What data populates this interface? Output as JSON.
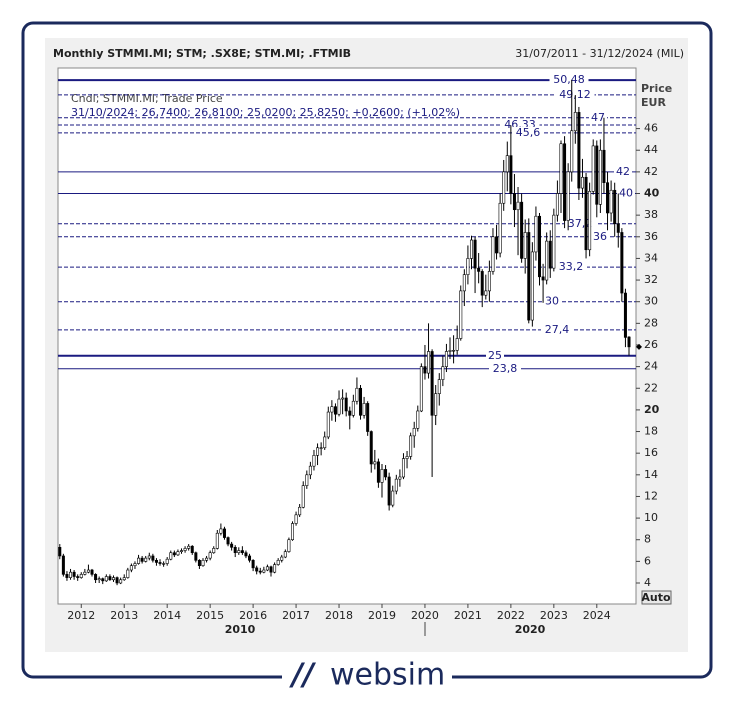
{
  "chart_data": {
    "type": "candlestick",
    "title": "Monthly STMMI.MI; STM; .SX8E; STM.MI; .FTMIB",
    "date_range": "31/07/2011 - 31/12/2024 (MIL)",
    "axis_label": "Price",
    "unit": "EUR",
    "info": [
      "Cndl; STMMI.MI; Trade Price",
      "31/10/2024; 26,7400; 26,8100; 25,0200; 25,8250; +0,2600; (+1,02%)"
    ],
    "button": "Auto",
    "decades": [
      "2010",
      "2020"
    ],
    "color_up": "#ffffff",
    "color_down": "#000000",
    "level_color": "#1a1a80",
    "ylim": [
      2.06,
      51.6
    ],
    "yticks": [
      4,
      6,
      8,
      10,
      12,
      14,
      16,
      18,
      20,
      22,
      24,
      26,
      28,
      30,
      32,
      34,
      36,
      38,
      40,
      42,
      44,
      46
    ],
    "levels": [
      {
        "value": 50.48,
        "label": "50,48",
        "style": "solid"
      },
      {
        "value": 49.12,
        "label": "49,12",
        "style": "dashed"
      },
      {
        "value": 47,
        "label": "47",
        "style": "dashed"
      },
      {
        "value": 46.33,
        "label": "46,33",
        "style": "dashed"
      },
      {
        "value": 45.6,
        "label": "45,6",
        "style": "dashed"
      },
      {
        "value": 42,
        "label": "42",
        "style": "solid"
      },
      {
        "value": 40,
        "label": "40",
        "style": "solid"
      },
      {
        "value": 37.2,
        "label": "37,2",
        "style": "dashed"
      },
      {
        "value": 36,
        "label": "36",
        "style": "dashed"
      },
      {
        "value": 33.2,
        "label": "33,2",
        "style": "dashed"
      },
      {
        "value": 30,
        "label": "30",
        "style": "dashed"
      },
      {
        "value": 27.4,
        "label": "27,4",
        "style": "dashed"
      },
      {
        "value": 25,
        "label": "25",
        "style": "solid"
      },
      {
        "value": 23.8,
        "label": "23,8",
        "style": "solid"
      }
    ],
    "categories": [
      null,
      null,
      null,
      null,
      null,
      null,
      "2012",
      null,
      null,
      null,
      null,
      null,
      null,
      null,
      null,
      null,
      null,
      null,
      "2013",
      null,
      null,
      null,
      null,
      null,
      null,
      null,
      null,
      null,
      null,
      null,
      "2014",
      null,
      null,
      null,
      null,
      null,
      null,
      null,
      null,
      null,
      null,
      null,
      "2015",
      null,
      null,
      null,
      null,
      null,
      null,
      null,
      null,
      null,
      null,
      null,
      "2016",
      null,
      null,
      null,
      null,
      null,
      null,
      null,
      null,
      null,
      null,
      null,
      "2017",
      null,
      null,
      null,
      null,
      null,
      null,
      null,
      null,
      null,
      null,
      null,
      "2018",
      null,
      null,
      null,
      null,
      null,
      null,
      null,
      null,
      null,
      null,
      null,
      "2019",
      null,
      null,
      null,
      null,
      null,
      null,
      null,
      null,
      null,
      null,
      null,
      "2020",
      null,
      null,
      null,
      null,
      null,
      null,
      null,
      null,
      null,
      null,
      null,
      "2021",
      null,
      null,
      null,
      null,
      null,
      null,
      null,
      null,
      null,
      null,
      null,
      "2022",
      null,
      null,
      null,
      null,
      null,
      null,
      null,
      null,
      null,
      null,
      null,
      "2023",
      null,
      null,
      null,
      null,
      null,
      null,
      null,
      null,
      null,
      null,
      null,
      "2024",
      null,
      null,
      null,
      null,
      null,
      null,
      null,
      null,
      null
    ],
    "ohlc": [
      [
        7.3,
        7.6,
        6.2,
        6.5
      ],
      [
        6.5,
        6.7,
        4.6,
        4.8
      ],
      [
        4.8,
        5.1,
        4.2,
        4.5
      ],
      [
        4.5,
        5.3,
        4.3,
        5.0
      ],
      [
        5.0,
        5.2,
        4.3,
        4.6
      ],
      [
        4.6,
        4.8,
        4.2,
        4.5
      ],
      [
        4.5,
        5.0,
        4.4,
        4.8
      ],
      [
        4.8,
        5.3,
        4.7,
        5.0
      ],
      [
        5.0,
        5.7,
        4.9,
        5.2
      ],
      [
        5.2,
        5.3,
        4.6,
        4.8
      ],
      [
        4.8,
        4.9,
        4.0,
        4.3
      ],
      [
        4.3,
        4.6,
        4.0,
        4.4
      ],
      [
        4.4,
        4.5,
        3.9,
        4.2
      ],
      [
        4.2,
        4.8,
        4.1,
        4.6
      ],
      [
        4.6,
        4.8,
        4.2,
        4.3
      ],
      [
        4.3,
        4.7,
        4.1,
        4.5
      ],
      [
        4.5,
        4.6,
        3.8,
        4.0
      ],
      [
        4.0,
        4.5,
        3.9,
        4.3
      ],
      [
        4.3,
        4.8,
        4.2,
        4.5
      ],
      [
        4.5,
        5.4,
        4.4,
        5.2
      ],
      [
        5.2,
        5.8,
        5.0,
        5.6
      ],
      [
        5.6,
        6.0,
        5.3,
        5.8
      ],
      [
        5.8,
        6.6,
        5.7,
        6.3
      ],
      [
        6.3,
        6.5,
        5.8,
        6.0
      ],
      [
        6.0,
        6.5,
        5.9,
        6.3
      ],
      [
        6.3,
        6.8,
        6.1,
        6.5
      ],
      [
        6.5,
        6.7,
        5.9,
        6.1
      ],
      [
        6.1,
        6.3,
        5.6,
        5.9
      ],
      [
        5.9,
        6.2,
        5.6,
        5.8
      ],
      [
        5.8,
        6.0,
        5.5,
        5.8
      ],
      [
        5.8,
        6.4,
        5.6,
        6.2
      ],
      [
        6.2,
        7.0,
        6.1,
        6.8
      ],
      [
        6.8,
        7.0,
        6.4,
        6.6
      ],
      [
        6.6,
        7.1,
        6.5,
        6.9
      ],
      [
        6.9,
        7.2,
        6.7,
        7.0
      ],
      [
        7.0,
        7.4,
        6.8,
        7.2
      ],
      [
        7.2,
        7.6,
        7.0,
        7.4
      ],
      [
        7.4,
        7.5,
        6.6,
        6.8
      ],
      [
        6.8,
        6.9,
        5.9,
        6.1
      ],
      [
        6.1,
        6.2,
        5.3,
        5.6
      ],
      [
        5.6,
        6.3,
        5.5,
        6.1
      ],
      [
        6.1,
        6.5,
        5.9,
        6.3
      ],
      [
        6.3,
        7.0,
        6.1,
        6.8
      ],
      [
        6.8,
        7.4,
        6.7,
        7.2
      ],
      [
        7.2,
        8.9,
        7.1,
        8.6
      ],
      [
        8.6,
        9.5,
        8.4,
        9.0
      ],
      [
        9.0,
        9.2,
        8.0,
        8.2
      ],
      [
        8.2,
        8.3,
        7.4,
        7.6
      ],
      [
        7.6,
        7.8,
        7.0,
        7.3
      ],
      [
        7.3,
        7.5,
        6.4,
        6.8
      ],
      [
        6.8,
        7.3,
        6.6,
        7.0
      ],
      [
        7.0,
        7.4,
        6.6,
        6.8
      ],
      [
        6.8,
        7.0,
        6.3,
        6.5
      ],
      [
        6.5,
        6.7,
        5.9,
        6.1
      ],
      [
        6.1,
        6.2,
        5.1,
        5.4
      ],
      [
        5.4,
        5.6,
        4.8,
        5.1
      ],
      [
        5.1,
        5.4,
        4.8,
        5.0
      ],
      [
        5.0,
        5.5,
        4.9,
        5.2
      ],
      [
        5.2,
        5.7,
        5.1,
        5.5
      ],
      [
        5.5,
        5.6,
        4.6,
        5.0
      ],
      [
        5.0,
        5.9,
        4.9,
        5.7
      ],
      [
        5.7,
        6.3,
        5.6,
        6.1
      ],
      [
        6.1,
        6.6,
        5.9,
        6.4
      ],
      [
        6.4,
        7.1,
        6.3,
        6.9
      ],
      [
        6.9,
        8.2,
        6.8,
        8.0
      ],
      [
        8.0,
        9.7,
        7.9,
        9.5
      ],
      [
        9.5,
        10.6,
        9.3,
        10.3
      ],
      [
        10.3,
        11.3,
        10.1,
        11.0
      ],
      [
        11.0,
        13.4,
        10.9,
        13.0
      ],
      [
        13.0,
        14.4,
        12.7,
        14.0
      ],
      [
        14.0,
        15.2,
        13.6,
        14.8
      ],
      [
        14.8,
        16.3,
        14.4,
        15.8
      ],
      [
        15.8,
        16.9,
        14.9,
        16.5
      ],
      [
        16.5,
        17.0,
        15.8,
        16.5
      ],
      [
        16.5,
        18.0,
        16.3,
        17.5
      ],
      [
        17.5,
        20.3,
        17.3,
        19.8
      ],
      [
        19.8,
        20.9,
        19.0,
        20.3
      ],
      [
        20.3,
        20.6,
        18.9,
        19.6
      ],
      [
        19.6,
        21.8,
        19.4,
        21.0
      ],
      [
        21.0,
        21.9,
        19.6,
        21.1
      ],
      [
        21.1,
        21.6,
        19.4,
        19.9
      ],
      [
        19.9,
        20.3,
        18.2,
        19.5
      ],
      [
        19.5,
        21.4,
        19.3,
        20.8
      ],
      [
        20.8,
        23.0,
        20.5,
        22.0
      ],
      [
        22.0,
        22.3,
        19.1,
        19.5
      ],
      [
        19.5,
        21.2,
        19.2,
        20.6
      ],
      [
        20.6,
        20.8,
        17.6,
        18.0
      ],
      [
        18.0,
        18.1,
        14.2,
        15.0
      ],
      [
        15.0,
        16.3,
        14.5,
        15.2
      ],
      [
        15.2,
        15.5,
        12.8,
        13.3
      ],
      [
        13.3,
        15.0,
        11.9,
        14.5
      ],
      [
        14.5,
        14.9,
        13.5,
        13.8
      ],
      [
        13.8,
        14.2,
        10.7,
        11.2
      ],
      [
        11.2,
        13.0,
        11.0,
        12.5
      ],
      [
        12.5,
        14.0,
        12.2,
        13.6
      ],
      [
        13.6,
        14.5,
        12.9,
        13.8
      ],
      [
        13.8,
        16.0,
        13.6,
        15.5
      ],
      [
        15.5,
        16.2,
        14.6,
        15.7
      ],
      [
        15.7,
        17.9,
        15.4,
        17.6
      ],
      [
        17.6,
        18.9,
        16.5,
        18.3
      ],
      [
        18.3,
        20.4,
        18.0,
        19.9
      ],
      [
        19.9,
        24.3,
        19.8,
        24.0
      ],
      [
        24.0,
        26.0,
        22.8,
        23.4
      ],
      [
        23.4,
        28.0,
        22.9,
        25.4
      ],
      [
        25.4,
        25.6,
        13.8,
        19.5
      ],
      [
        19.5,
        22.3,
        18.6,
        21.5
      ],
      [
        21.5,
        23.4,
        20.4,
        22.8
      ],
      [
        22.8,
        25.0,
        22.2,
        24.0
      ],
      [
        24.0,
        26.1,
        23.5,
        25.4
      ],
      [
        25.4,
        26.7,
        24.7,
        25.5
      ],
      [
        25.5,
        26.9,
        24.3,
        25.5
      ],
      [
        25.5,
        27.8,
        25.1,
        26.6
      ],
      [
        26.6,
        31.5,
        26.4,
        31.0
      ],
      [
        31.0,
        33.0,
        29.6,
        32.5
      ],
      [
        32.5,
        35.2,
        31.6,
        34.0
      ],
      [
        34.0,
        36.1,
        33.0,
        35.7
      ],
      [
        35.7,
        36.0,
        30.8,
        33.1
      ],
      [
        33.1,
        34.5,
        31.7,
        32.8
      ],
      [
        32.8,
        33.0,
        29.5,
        30.6
      ],
      [
        30.6,
        32.5,
        30.2,
        31.0
      ],
      [
        31.0,
        33.8,
        30.0,
        32.8
      ],
      [
        32.8,
        36.8,
        32.5,
        36.0
      ],
      [
        36.0,
        37.1,
        33.9,
        34.5
      ],
      [
        34.5,
        40.0,
        34.1,
        39.1
      ],
      [
        39.1,
        43.1,
        38.4,
        42.0
      ],
      [
        42.0,
        44.8,
        40.2,
        43.5
      ],
      [
        43.5,
        46.3,
        39.0,
        40.0
      ],
      [
        40.0,
        41.8,
        36.9,
        38.5
      ],
      [
        38.5,
        40.6,
        34.3,
        39.2
      ],
      [
        39.2,
        40.0,
        33.6,
        34.0
      ],
      [
        34.0,
        37.6,
        32.6,
        36.4
      ],
      [
        36.4,
        37.7,
        28.0,
        28.3
      ],
      [
        28.3,
        35.5,
        27.7,
        34.6
      ],
      [
        34.6,
        38.8,
        33.8,
        37.9
      ],
      [
        37.9,
        38.2,
        31.5,
        32.3
      ],
      [
        32.3,
        33.5,
        29.9,
        32.0
      ],
      [
        32.0,
        36.4,
        31.6,
        35.6
      ],
      [
        35.6,
        36.6,
        32.2,
        33.1
      ],
      [
        33.1,
        38.6,
        32.8,
        38.0
      ],
      [
        38.0,
        41.2,
        37.4,
        40.0
      ],
      [
        40.0,
        44.9,
        38.2,
        44.6
      ],
      [
        44.6,
        45.3,
        36.8,
        37.5
      ],
      [
        37.5,
        42.8,
        36.6,
        42.0
      ],
      [
        42.0,
        50.5,
        41.1,
        45.8
      ],
      [
        45.8,
        49.1,
        44.6,
        47.5
      ],
      [
        47.5,
        48.0,
        39.4,
        40.5
      ],
      [
        40.5,
        43.2,
        39.6,
        41.5
      ],
      [
        41.5,
        41.9,
        34.0,
        34.8
      ],
      [
        34.8,
        41.0,
        34.2,
        40.2
      ],
      [
        40.2,
        45.0,
        39.9,
        44.4
      ],
      [
        44.4,
        44.9,
        37.8,
        39.0
      ],
      [
        39.0,
        45.0,
        38.2,
        44.0
      ],
      [
        44.0,
        47.0,
        40.0,
        41.0
      ],
      [
        41.0,
        42.0,
        36.6,
        38.2
      ],
      [
        38.2,
        41.2,
        37.4,
        40.3
      ],
      [
        40.3,
        41.0,
        36.0,
        37.2
      ],
      [
        37.2,
        40.0,
        35.0,
        36.4
      ],
      [
        36.4,
        36.8,
        30.0,
        30.8
      ],
      [
        30.8,
        31.2,
        25.8,
        26.7
      ],
      [
        26.74,
        26.81,
        25.02,
        25.825
      ]
    ]
  },
  "brand": "websim"
}
